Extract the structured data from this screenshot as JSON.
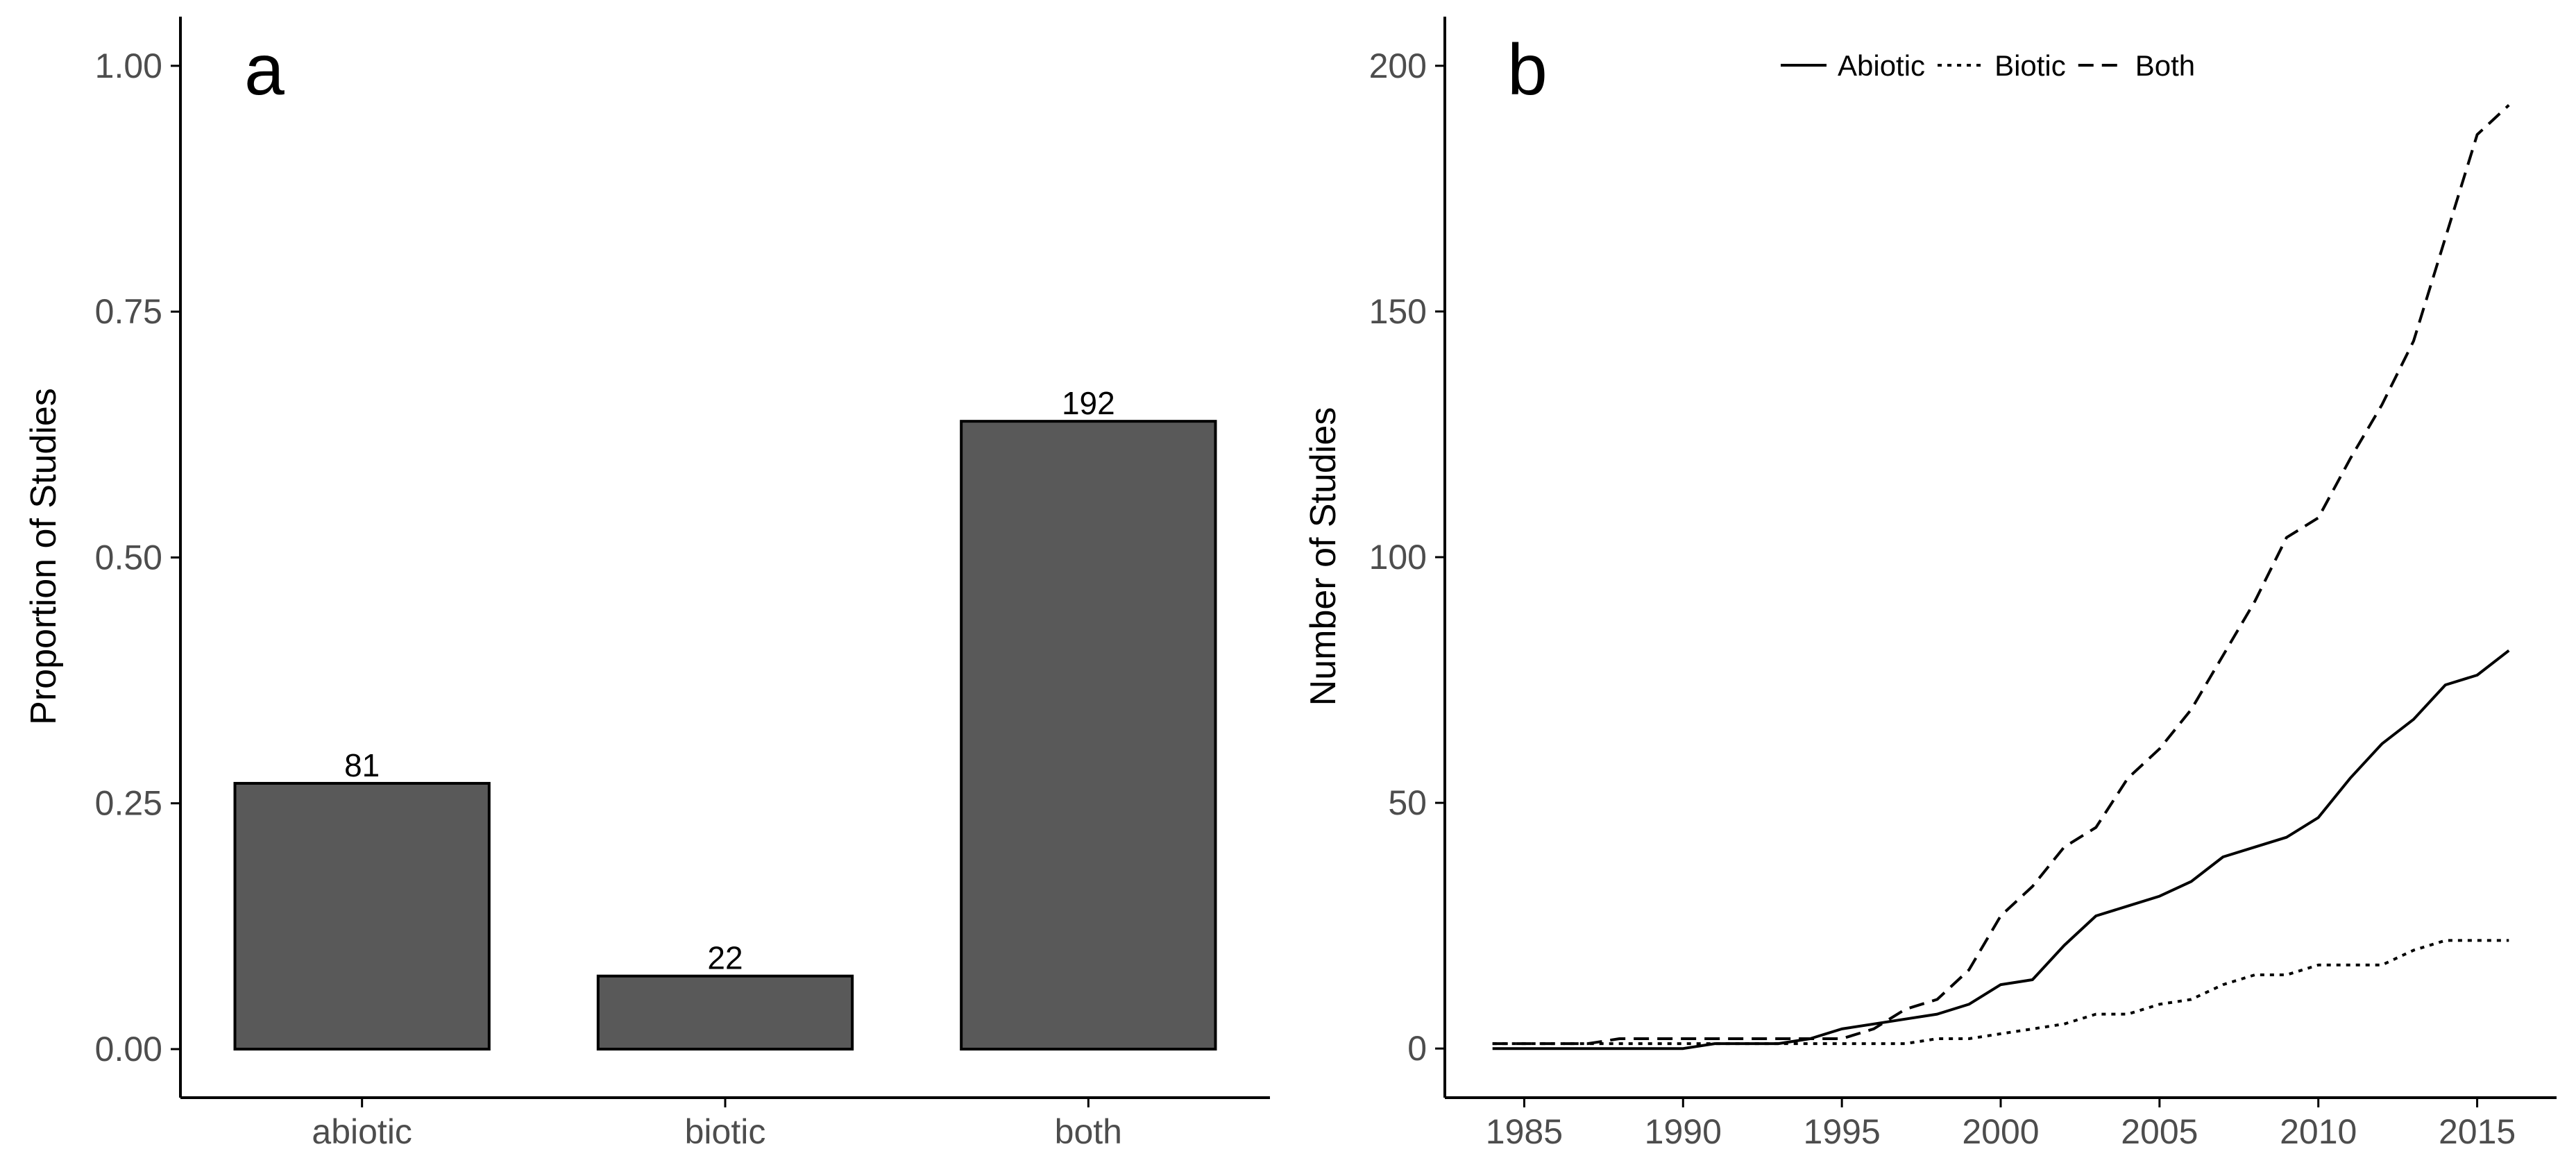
{
  "chart_data": [
    {
      "type": "bar",
      "panel_tag": "a",
      "categories": [
        "abiotic",
        "biotic",
        "both"
      ],
      "values": [
        0.2703,
        0.0743,
        0.6385
      ],
      "data_labels": [
        "81",
        "22",
        "192"
      ],
      "ylabel": "Proportion of Studies",
      "xlabel": "",
      "ylim": [
        0,
        1.05
      ],
      "yticks": [
        "0.00",
        "0.25",
        "0.50",
        "0.75",
        "1.00"
      ],
      "bar_color": "#595959",
      "grid": false
    },
    {
      "type": "line",
      "panel_tag": "b",
      "ylabel": "Number of Studies",
      "xlabel": "",
      "xlim": [
        1982.5,
        2017.5
      ],
      "ylim": [
        -10,
        210
      ],
      "xticks": [
        "1985",
        "1990",
        "1995",
        "2000",
        "2005",
        "2010",
        "2015"
      ],
      "yticks": [
        "0",
        "50",
        "100",
        "150",
        "200"
      ],
      "legend_position": "top",
      "grid": false,
      "x": [
        1984,
        1985,
        1986,
        1987,
        1988,
        1989,
        1990,
        1991,
        1992,
        1993,
        1994,
        1995,
        1996,
        1997,
        1998,
        1999,
        2000,
        2001,
        2002,
        2003,
        2004,
        2005,
        2006,
        2007,
        2008,
        2009,
        2010,
        2011,
        2012,
        2013,
        2014,
        2015,
        2016
      ],
      "series": [
        {
          "name": "Abiotic",
          "linestyle": "solid",
          "values": [
            0,
            0,
            0,
            0,
            0,
            0,
            0,
            1,
            1,
            1,
            2,
            4,
            5,
            6,
            7,
            9,
            13,
            14,
            21,
            27,
            29,
            31,
            34,
            39,
            41,
            43,
            47,
            55,
            62,
            67,
            74,
            76,
            81
          ]
        },
        {
          "name": "Biotic",
          "linestyle": "dotted",
          "values": [
            1,
            1,
            1,
            1,
            1,
            1,
            1,
            1,
            1,
            1,
            1,
            1,
            1,
            1,
            2,
            2,
            3,
            4,
            5,
            7,
            7,
            9,
            10,
            13,
            15,
            15,
            17,
            17,
            17,
            20,
            22,
            22,
            22
          ]
        },
        {
          "name": "Both",
          "linestyle": "dashed",
          "values": [
            1,
            1,
            1,
            1,
            2,
            2,
            2,
            2,
            2,
            2,
            2,
            2,
            4,
            8,
            10,
            16,
            27,
            33,
            41,
            45,
            55,
            61,
            69,
            80,
            91,
            104,
            108,
            120,
            131,
            144,
            165,
            186,
            192
          ]
        }
      ]
    }
  ]
}
